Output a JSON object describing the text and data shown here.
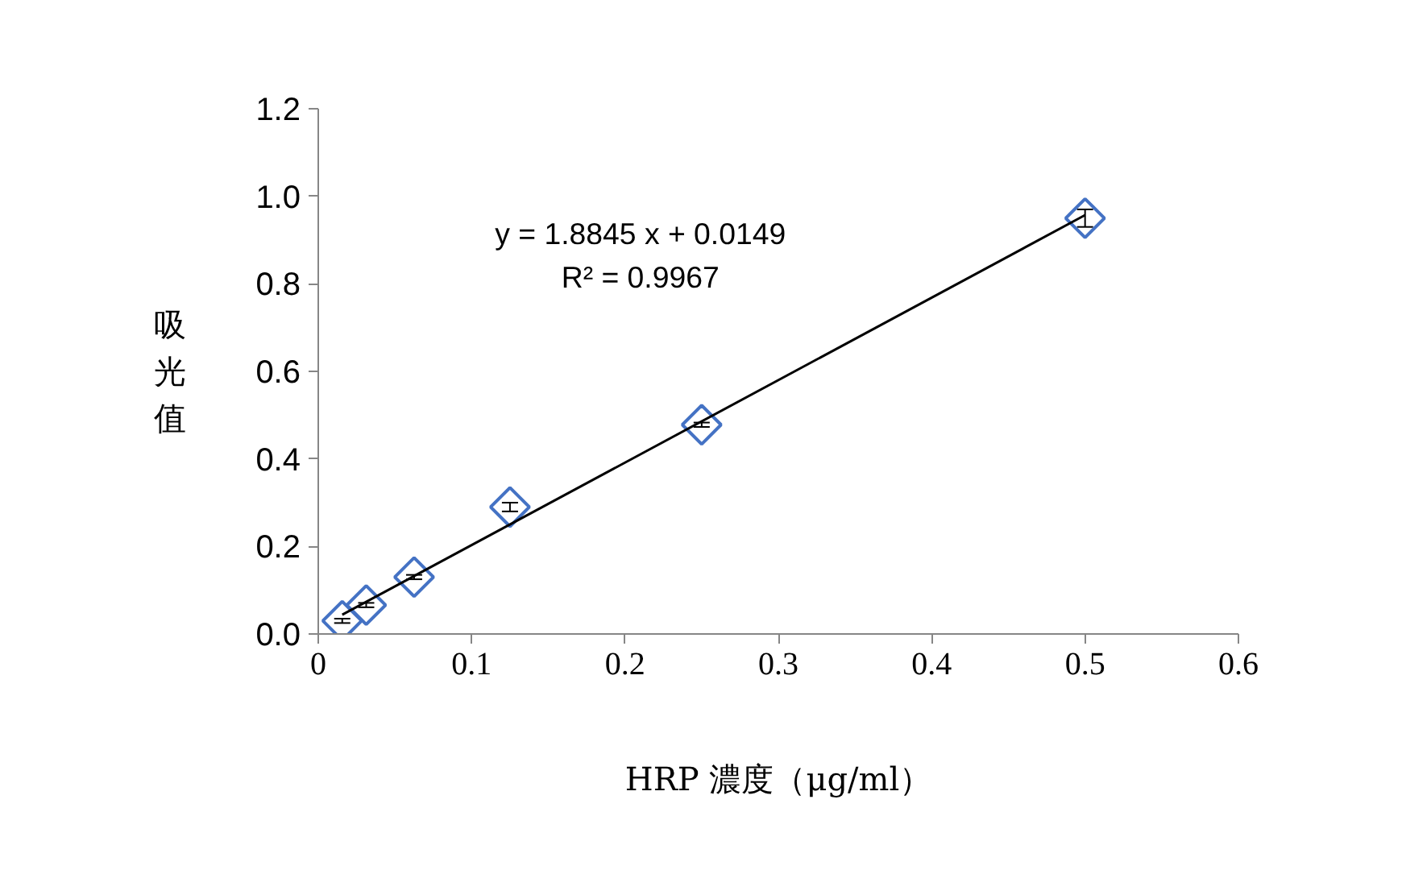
{
  "chart_data": {
    "type": "scatter",
    "xlabel": "HRP 濃度（μg/ml）",
    "ylabel": "吸光值",
    "xlim": [
      0,
      0.6
    ],
    "xticks": [
      0,
      0.1,
      0.2,
      0.3,
      0.4,
      0.5,
      0.6
    ],
    "ylim": [
      0,
      1.2
    ],
    "yticks": [
      {
        "value": 0,
        "label": "0.0"
      },
      0.2,
      0.4,
      0.6,
      0.8,
      {
        "value": 1,
        "label": "1.0"
      },
      1.2
    ],
    "grid": false,
    "series": [
      {
        "marker": "diamond",
        "color": "#4472c4",
        "x": [
          0.015625,
          0.03125,
          0.0625,
          0.125,
          0.25,
          0.5
        ],
        "values": [
          0.03,
          0.066,
          0.13,
          0.29,
          0.478,
          0.95
        ],
        "errors": [
          0.005,
          0.005,
          0.005,
          0.01,
          0.005,
          0.02
        ]
      },
      {
        "type": "line",
        "color": "#000000",
        "x": [
          0.015625,
          0.5
        ],
        "values": [
          0.044,
          0.957
        ]
      }
    ],
    "annotations": [
      "y = 1.8845 x + 0.0149",
      "R² = 0.9967"
    ]
  }
}
